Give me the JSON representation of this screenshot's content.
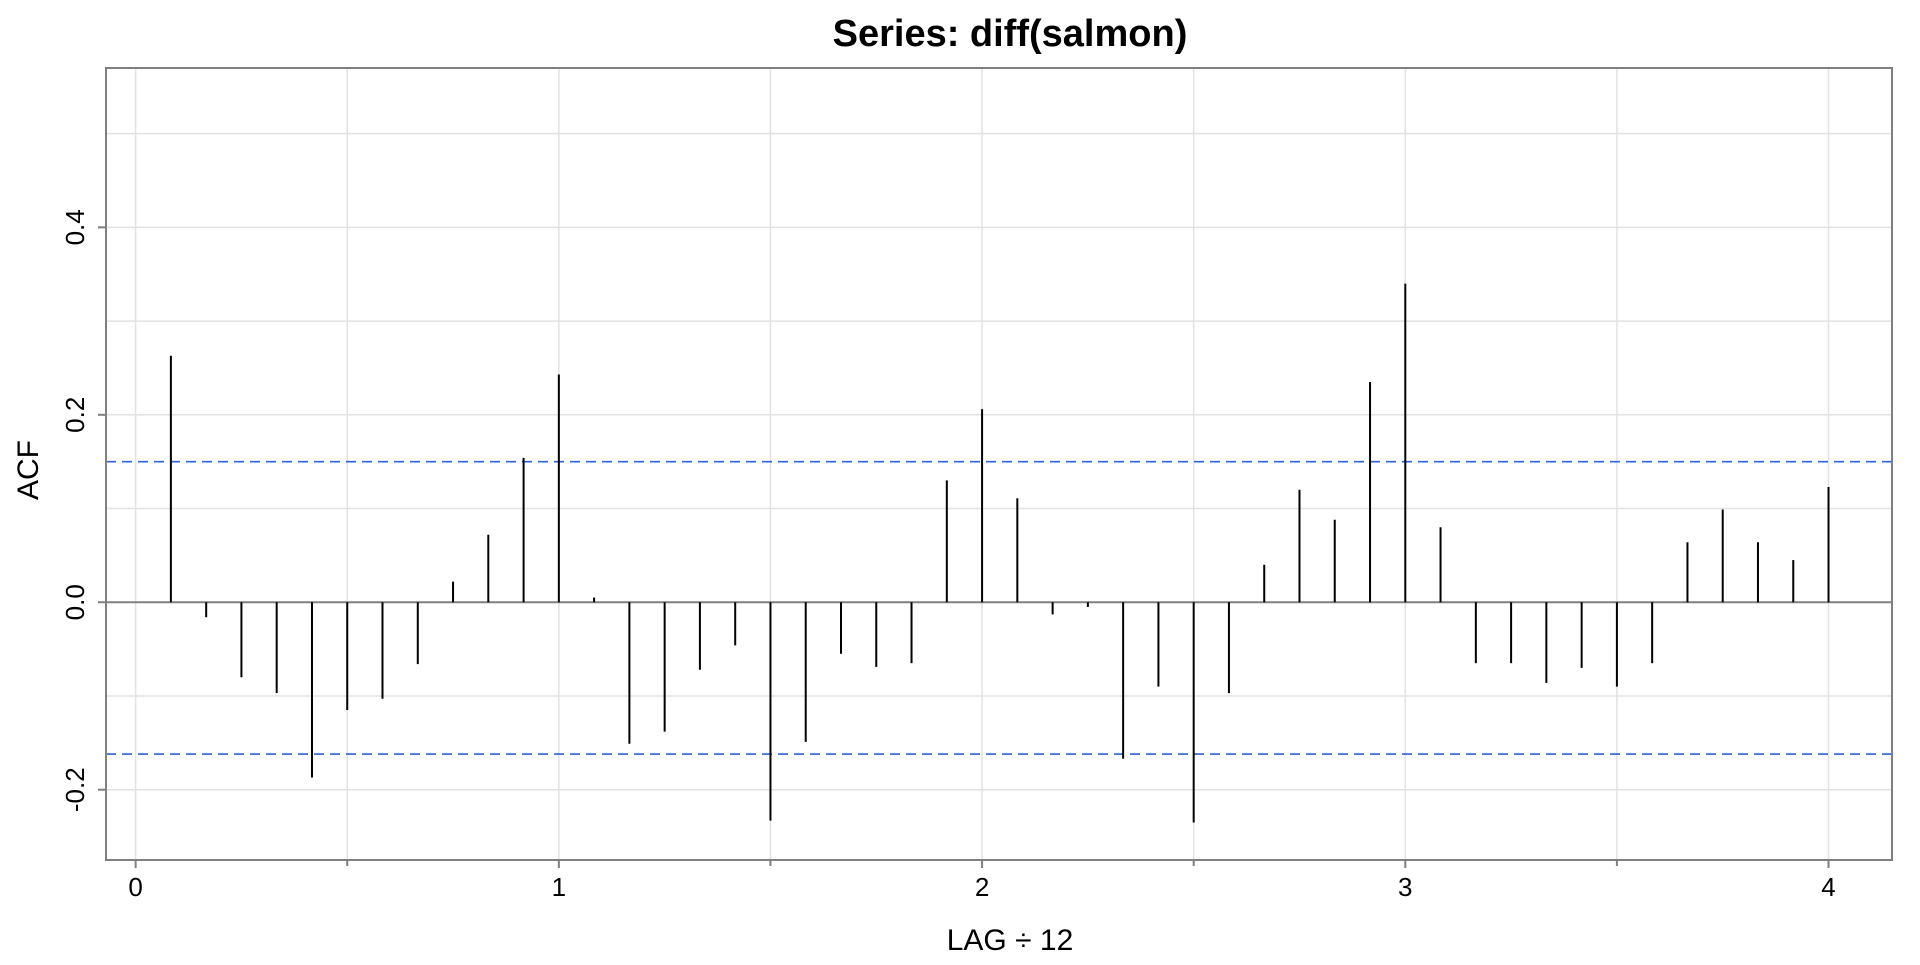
{
  "chart_data": {
    "type": "bar",
    "title": "Series:  diff(salmon)",
    "xlabel": "LAG ÷ 12",
    "ylabel": "ACF",
    "xlim": [
      -0.07,
      4.15
    ],
    "ylim": [
      -0.275,
      0.57
    ],
    "x_ticks": [
      0,
      1,
      2,
      3,
      4
    ],
    "x_minor_ticks": [
      0.5,
      1.5,
      2.5,
      3.5
    ],
    "y_ticks": [
      -0.2,
      0.0,
      0.2,
      0.4
    ],
    "y_tick_labels": [
      "-0.2",
      "0.0",
      "0.2",
      "0.4"
    ],
    "x_tick_labels": [
      "0",
      "1",
      "2",
      "3",
      "4"
    ],
    "grid": true,
    "confidence_bounds": [
      0.15,
      -0.162
    ],
    "series": [
      {
        "x": [
          0.0833,
          0.1667,
          0.25,
          0.3333,
          0.4167,
          0.5,
          0.5833,
          0.6667,
          0.75,
          0.8333,
          0.9167,
          1.0,
          1.0833,
          1.1667,
          1.25,
          1.3333,
          1.4167,
          1.5,
          1.5833,
          1.6667,
          1.75,
          1.8333,
          1.9167,
          2.0,
          2.0833,
          2.1667,
          2.25,
          2.3333,
          2.4167,
          2.5,
          2.5833,
          2.6667,
          2.75,
          2.8333,
          2.9167,
          3.0,
          3.0833,
          3.1667,
          3.25,
          3.3333,
          3.4167,
          3.5,
          3.5833,
          3.6667,
          3.75,
          3.8333,
          3.9167,
          4.0
        ],
        "values": [
          0.263,
          -0.016,
          -0.08,
          -0.097,
          -0.187,
          -0.115,
          -0.103,
          -0.066,
          0.022,
          0.072,
          0.154,
          0.243,
          0.005,
          -0.151,
          -0.138,
          -0.072,
          -0.046,
          -0.233,
          -0.149,
          -0.055,
          -0.069,
          -0.065,
          0.13,
          0.206,
          0.111,
          -0.013,
          -0.005,
          -0.167,
          -0.09,
          -0.235,
          -0.097,
          0.04,
          0.12,
          0.088,
          0.235,
          0.34,
          0.08,
          -0.065,
          -0.065,
          -0.086,
          -0.07,
          -0.09,
          -0.065,
          0.064,
          0.099,
          0.064,
          0.045,
          0.123
        ]
      }
    ]
  }
}
